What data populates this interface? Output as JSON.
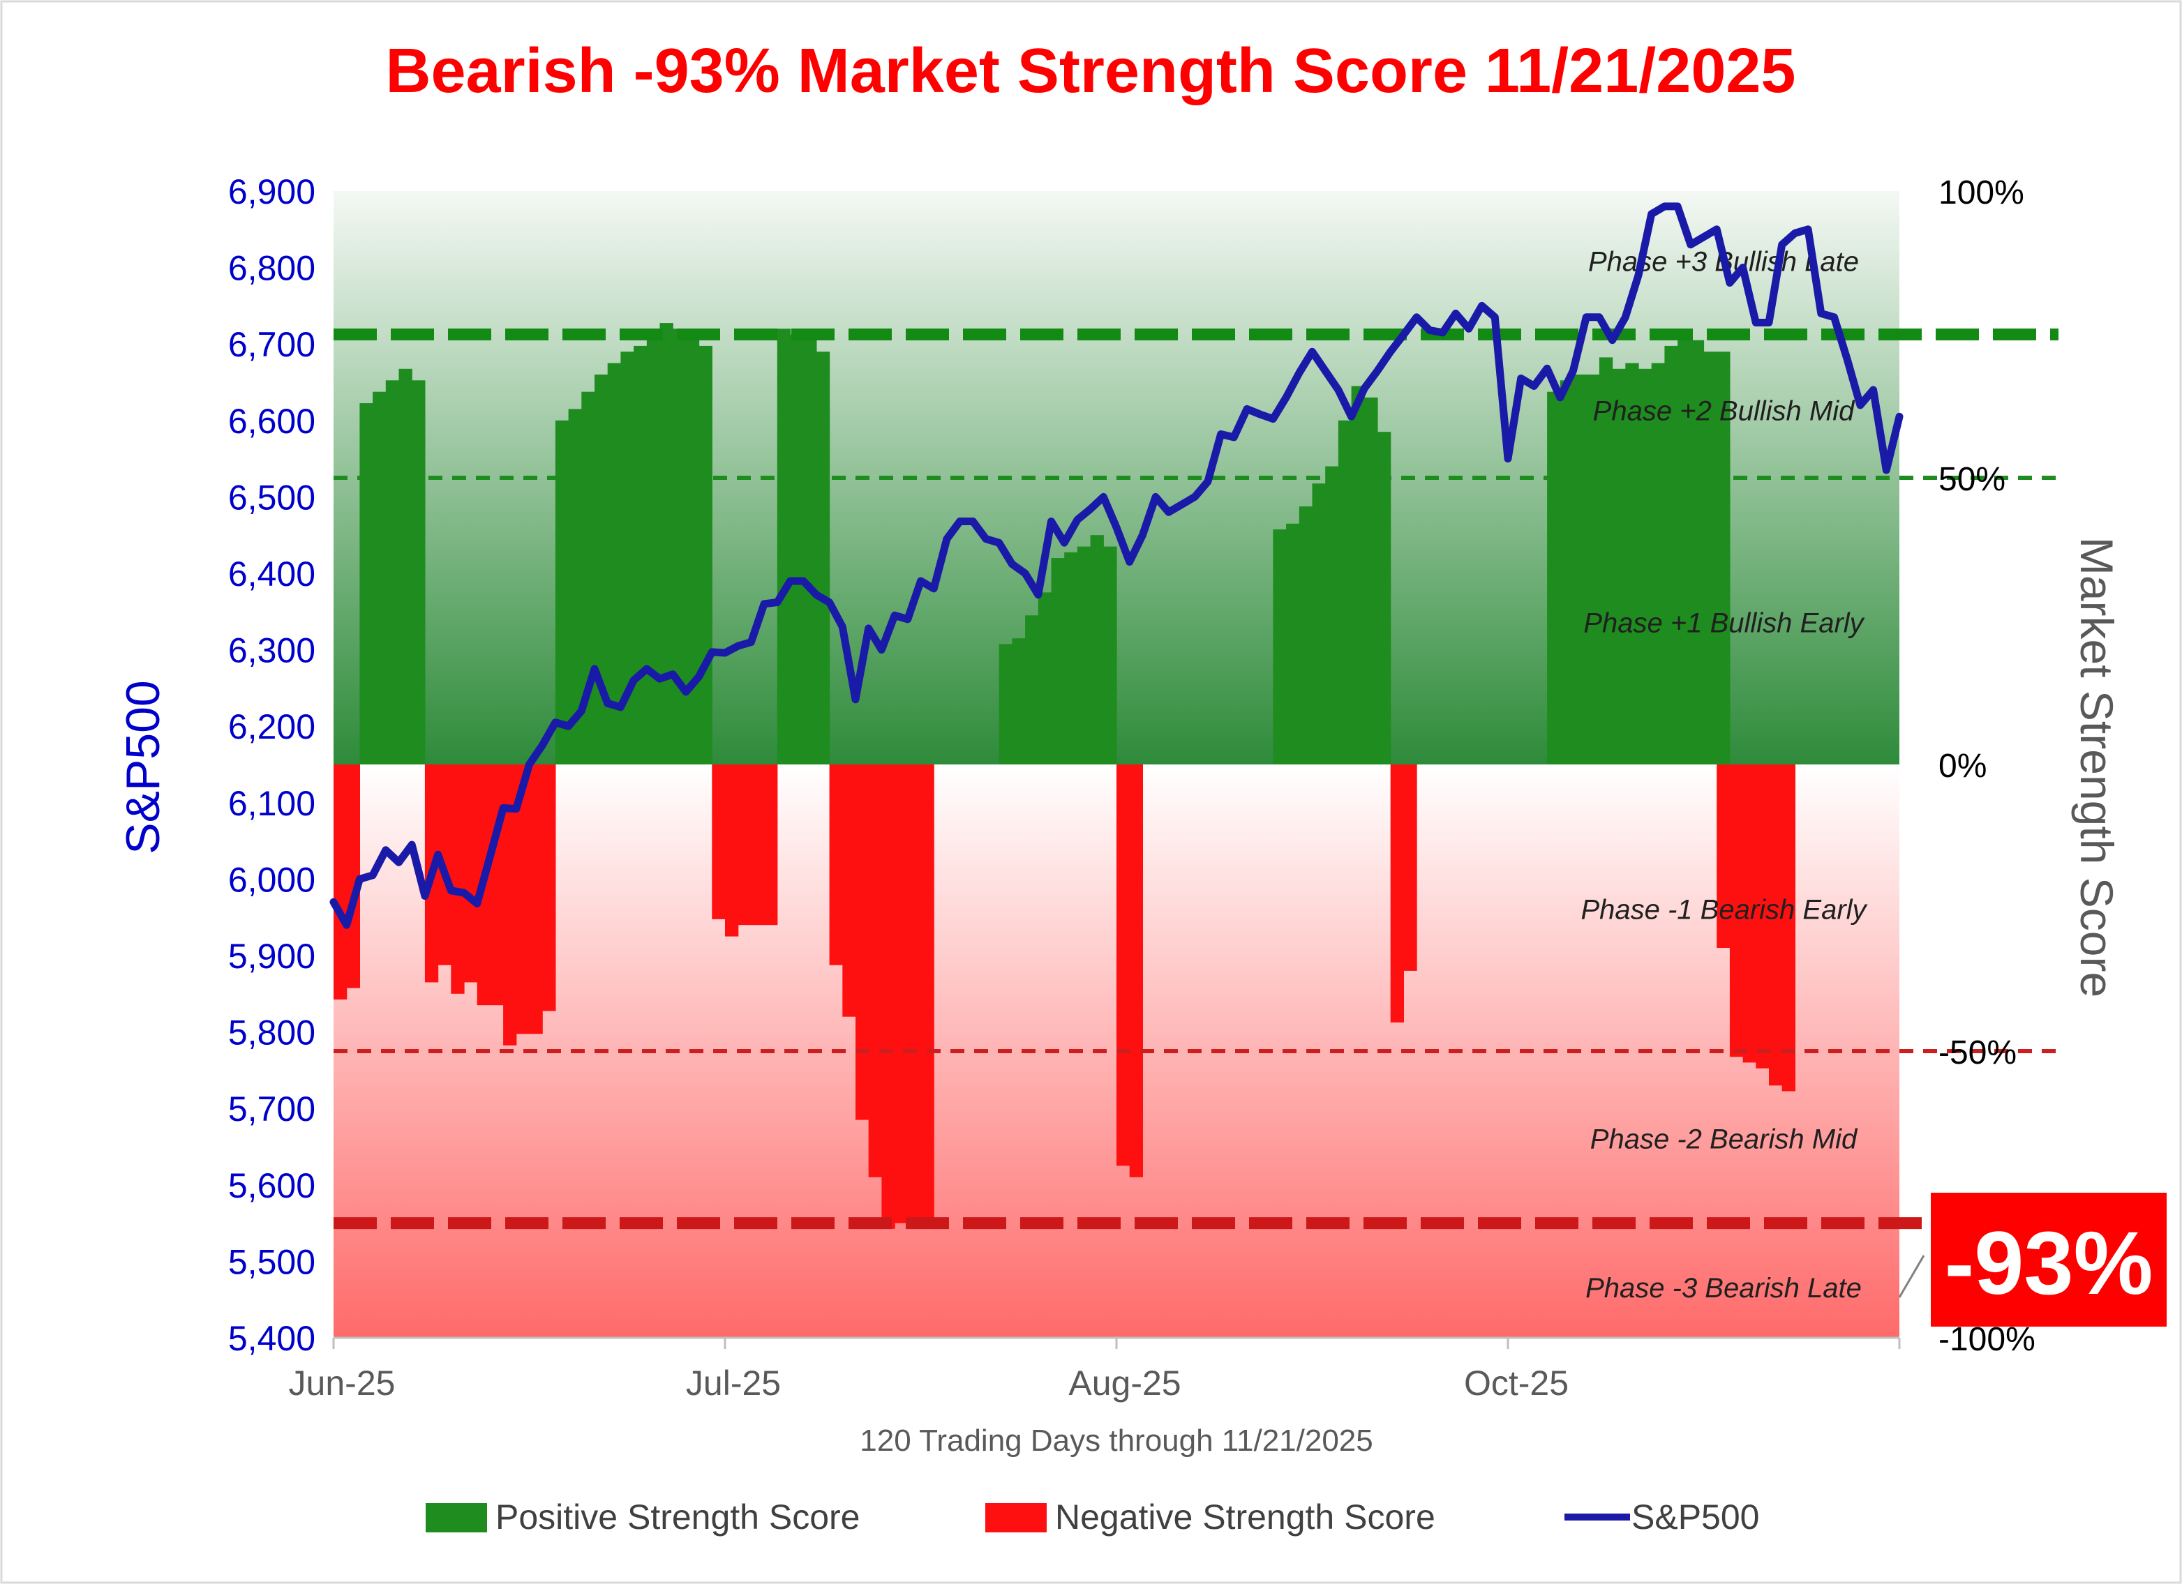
{
  "chart_data": {
    "type": "bar",
    "title": "Bearish -93% Market Strength Score 11/21/2025",
    "xlabel": "120 Trading Days through 11/21/2025",
    "ylabel_left": "S&P500",
    "ylabel_right": "Market Strength Score",
    "x_tick_labels": [
      "Jun-25",
      "Jul-25",
      "Aug-25",
      "Oct-25"
    ],
    "x_tick_days": [
      0,
      30,
      60,
      90
    ],
    "ylim_left": [
      5400,
      6900
    ],
    "yticks_left": [
      "5,400",
      "5,500",
      "5,600",
      "5,700",
      "5,800",
      "5,900",
      "6,000",
      "6,100",
      "6,200",
      "6,300",
      "6,400",
      "6,500",
      "6,600",
      "6,700",
      "6,800",
      "6,900"
    ],
    "ylim_right": [
      -100,
      100
    ],
    "yticks_right": [
      "-100%",
      "-50%",
      "0%",
      "50%",
      "100%"
    ],
    "num_days": 120,
    "legend_position": "bottom",
    "grid": false,
    "colors": {
      "title": "#ff0000",
      "positive": "#1e8c1e",
      "negative": "#ff1010",
      "sp500": "#1a1aa8",
      "left_axis": "#0000cc",
      "right_axis_title": "#595959",
      "badge": "#ff0000"
    },
    "threshold_lines": [
      {
        "value": 75,
        "style": "thick-dashed",
        "color": "#138a13"
      },
      {
        "value": 50,
        "style": "thin-dashed",
        "color": "#1e8c1e"
      },
      {
        "value": -50,
        "style": "thin-dashed",
        "color": "#cc2020"
      },
      {
        "value": -80,
        "style": "thick-dashed",
        "color": "#cc1818"
      }
    ],
    "phases": [
      {
        "label": "Phase +3 Bullish Late",
        "at": 88
      },
      {
        "label": "Phase +2 Bullish Mid",
        "at": 62
      },
      {
        "label": "Phase +1 Bullish Early",
        "at": 25
      },
      {
        "label": "Phase -1 Bearish Early",
        "at": -25
      },
      {
        "label": "Phase -2 Bearish Mid",
        "at": -65
      },
      {
        "label": "Phase -3 Bearish Late",
        "at": -91
      }
    ],
    "current_score": "-93%",
    "series": [
      {
        "name": "Positive Strength Score",
        "kind": "bar",
        "values": [
          0,
          0,
          63,
          65,
          67,
          69,
          67,
          0,
          0,
          0,
          0,
          0,
          0,
          0,
          0,
          0,
          0,
          60,
          62,
          65,
          68,
          70,
          72,
          73,
          76,
          77,
          76,
          76,
          73,
          0,
          0,
          0,
          0,
          0,
          76,
          75,
          74,
          72,
          0,
          0,
          0,
          0,
          0,
          0,
          0,
          0,
          0,
          0,
          0,
          0,
          0,
          21,
          22,
          26,
          30,
          36,
          37,
          38,
          40,
          38,
          0,
          0,
          0,
          0,
          0,
          0,
          0,
          0,
          0,
          0,
          0,
          0,
          41,
          42,
          45,
          49,
          52,
          60,
          66,
          64,
          58,
          0,
          0,
          0,
          0,
          0,
          0,
          0,
          0,
          0,
          0,
          0,
          0,
          65,
          67,
          68,
          68,
          71,
          69,
          70,
          69,
          70,
          73,
          74,
          74,
          72,
          72,
          0,
          0,
          0,
          0,
          0,
          0,
          0,
          0,
          0,
          0,
          0,
          0,
          0,
          0,
          0,
          0,
          0,
          0,
          0,
          0,
          0,
          0,
          0
        ]
      },
      {
        "name": "Negative Strength Score",
        "kind": "bar",
        "values": [
          -41,
          -39,
          0,
          0,
          0,
          0,
          0,
          -38,
          -35,
          -40,
          -38,
          -42,
          -42,
          -49,
          -47,
          -47,
          -43,
          0,
          0,
          0,
          0,
          0,
          0,
          0,
          0,
          0,
          0,
          0,
          0,
          -27,
          -30,
          -28,
          -28,
          -28,
          0,
          0,
          0,
          0,
          -35,
          -44,
          -62,
          -72,
          -81,
          -80,
          -80,
          -80,
          0,
          0,
          0,
          0,
          0,
          0,
          0,
          0,
          0,
          0,
          0,
          0,
          0,
          0,
          -70,
          -72,
          0,
          0,
          0,
          0,
          0,
          0,
          0,
          0,
          0,
          0,
          0,
          0,
          0,
          0,
          0,
          0,
          0,
          0,
          0,
          -45,
          -36,
          0,
          0,
          0,
          0,
          0,
          0,
          0,
          0,
          0,
          0,
          0,
          0,
          0,
          0,
          0,
          0,
          0,
          0,
          0,
          0,
          0,
          0,
          0,
          -32,
          -51,
          -52,
          -53,
          -56,
          -57,
          0,
          0,
          0,
          0,
          0,
          0,
          0,
          0,
          0,
          0,
          0
        ]
      },
      {
        "name": "S&P500",
        "kind": "line",
        "axis": "left",
        "values": [
          5970,
          5940,
          6000,
          6005,
          6038,
          6022,
          6045,
          5978,
          6032,
          5985,
          5982,
          5968,
          6030,
          6093,
          6092,
          6150,
          6175,
          6205,
          6200,
          6220,
          6275,
          6230,
          6225,
          6260,
          6275,
          6262,
          6268,
          6245,
          6265,
          6297,
          6296,
          6305,
          6310,
          6360,
          6362,
          6390,
          6390,
          6372,
          6362,
          6330,
          6235,
          6328,
          6300,
          6345,
          6340,
          6390,
          6380,
          6445,
          6468,
          6468,
          6445,
          6440,
          6412,
          6400,
          6372,
          6468,
          6440,
          6470,
          6484,
          6500,
          6460,
          6415,
          6450,
          6500,
          6480,
          6490,
          6500,
          6520,
          6582,
          6578,
          6615,
          6608,
          6602,
          6630,
          6662,
          6690,
          6665,
          6640,
          6605,
          6642,
          6665,
          6690,
          6712,
          6735,
          6718,
          6715,
          6740,
          6720,
          6750,
          6735,
          6550,
          6655,
          6645,
          6668,
          6630,
          6665,
          6735,
          6735,
          6705,
          6735,
          6790,
          6870,
          6880,
          6880,
          6830,
          6840,
          6850,
          6780,
          6800,
          6728,
          6728,
          6830,
          6845,
          6850,
          6740,
          6735,
          6680,
          6620,
          6640,
          6535,
          6605
        ]
      }
    ]
  },
  "legend": {
    "positive": "Positive Strength Score",
    "negative": "Negative Strength Score",
    "sp500": "S&P500"
  }
}
